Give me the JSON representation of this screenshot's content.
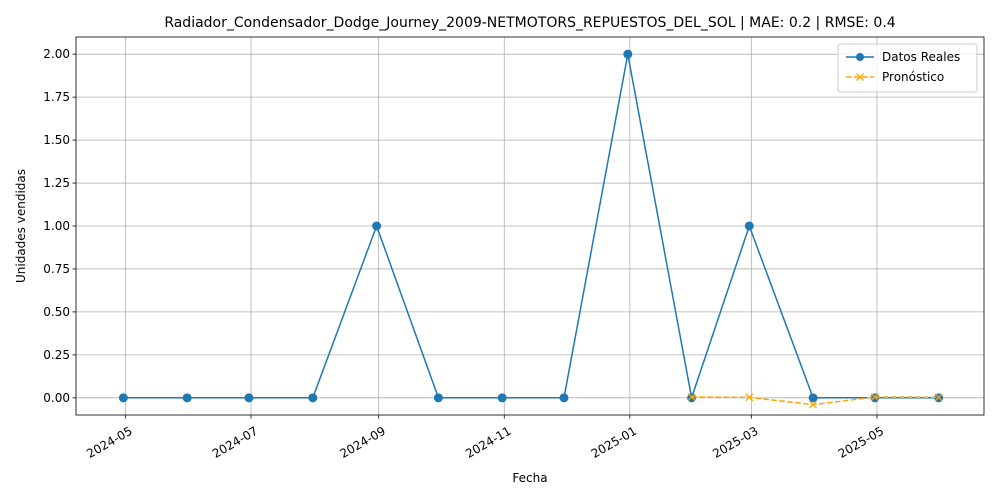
{
  "chart_data": {
    "type": "line",
    "title": "Radiador_Condensador_Dodge_Journey_2009-NETMOTORS_REPUESTOS_DEL_SOL | MAE: 0.2 | RMSE: 0.4",
    "xlabel": "Fecha",
    "ylabel": "Unidades vendidas",
    "x_range": [
      "2024-04-07",
      "2025-06-22"
    ],
    "ylim": [
      -0.1,
      2.1
    ],
    "x_ticks": [
      "2024-05",
      "2024-07",
      "2024-09",
      "2024-11",
      "2025-01",
      "2025-03",
      "2025-05"
    ],
    "y_ticks": [
      "0.00",
      "0.25",
      "0.50",
      "0.75",
      "1.00",
      "1.25",
      "1.50",
      "1.75",
      "2.00"
    ],
    "grid": true,
    "legend_position": "top-right",
    "series": [
      {
        "name": "Datos Reales",
        "color": "#1f77b4",
        "marker": "circle",
        "linestyle": "solid",
        "x": [
          "2024-04-30",
          "2024-05-31",
          "2024-06-30",
          "2024-07-31",
          "2024-08-31",
          "2024-09-30",
          "2024-10-31",
          "2024-11-30",
          "2024-12-31",
          "2025-01-31",
          "2025-02-28",
          "2025-03-31",
          "2025-04-30",
          "2025-05-31"
        ],
        "values": [
          0,
          0,
          0,
          0,
          1,
          0,
          0,
          0,
          2,
          0,
          1,
          0,
          0,
          0
        ]
      },
      {
        "name": "Pronóstico",
        "color": "#ffa500",
        "marker": "x",
        "linestyle": "dashed",
        "x": [
          "2025-01-31",
          "2025-02-28",
          "2025-03-31",
          "2025-04-30",
          "2025-05-31"
        ],
        "values": [
          0.005,
          0.003,
          -0.04,
          0.005,
          0.003
        ]
      }
    ]
  }
}
